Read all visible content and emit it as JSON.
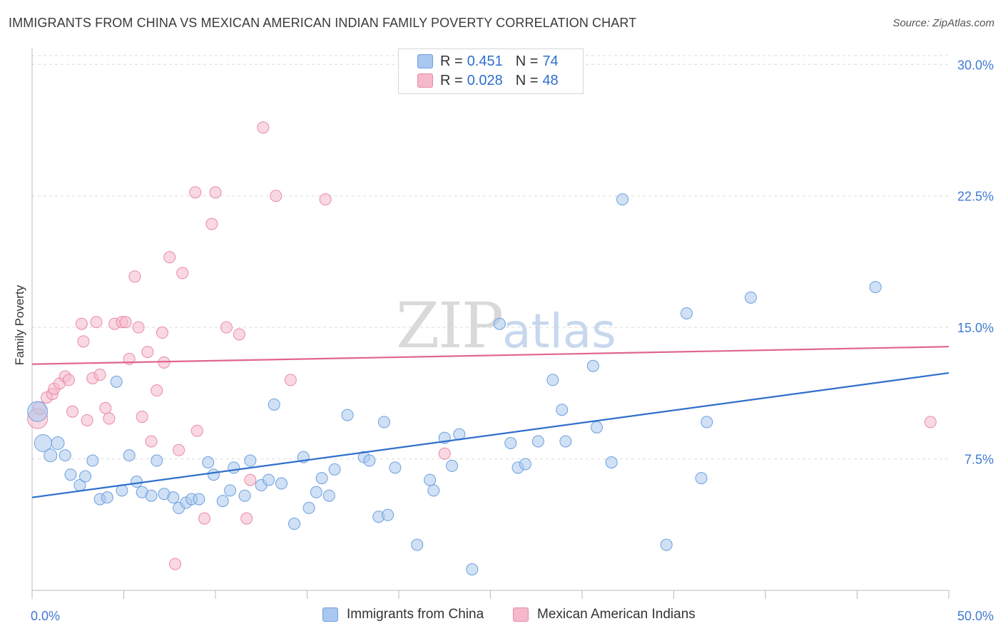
{
  "header": {
    "title": "IMMIGRANTS FROM CHINA VS MEXICAN AMERICAN INDIAN FAMILY POVERTY CORRELATION CHART",
    "source": "Source: ZipAtlas.com"
  },
  "watermark": {
    "zip": "ZIP",
    "atlas": "atlas"
  },
  "legend_top": {
    "rows": [
      {
        "r_label": "R =",
        "r_value": "0.451",
        "n_label": "N =",
        "n_value": "74",
        "color": "#a9c8ef"
      },
      {
        "r_label": "R =",
        "r_value": "0.028",
        "n_label": "N =",
        "n_value": "48",
        "color": "#f6b8cb"
      }
    ]
  },
  "colors": {
    "blue_fill": "#a9c8ef",
    "blue_stroke": "#6d9fde",
    "blue_line": "#2f6fcc",
    "pink_fill": "#f6b8cb",
    "pink_stroke": "#e88aa8",
    "pink_line": "#e0668c",
    "tick_label": "#3f7ad0",
    "grid": "#dcdcdc"
  },
  "chart_data": {
    "type": "scatter",
    "title": "IMMIGRANTS FROM CHINA VS MEXICAN AMERICAN INDIAN FAMILY POVERTY CORRELATION CHART",
    "xlabel": "",
    "ylabel": "Family Poverty",
    "xlim": [
      0,
      50
    ],
    "ylim": [
      0,
      30.5
    ],
    "x_tick_labels": [
      "0.0%",
      "50.0%"
    ],
    "y_ticks": [
      7.5,
      15,
      22.5,
      30
    ],
    "y_tick_labels": [
      "7.5%",
      "15.0%",
      "22.5%",
      "30.0%"
    ],
    "grid": true,
    "legend": "bottom",
    "series": [
      {
        "name": "Immigrants from China",
        "trend": [
          [
            0,
            5.3
          ],
          [
            50,
            12.4
          ]
        ],
        "points": [
          [
            0.3,
            10.2,
            14
          ],
          [
            0.6,
            8.4,
            12
          ],
          [
            1.0,
            7.7,
            9
          ],
          [
            1.4,
            8.4,
            9
          ],
          [
            1.8,
            7.7,
            8
          ],
          [
            2.1,
            6.6,
            8
          ],
          [
            2.6,
            6.0,
            8
          ],
          [
            2.9,
            6.5,
            8
          ],
          [
            3.3,
            7.4,
            8
          ],
          [
            3.7,
            5.2,
            8
          ],
          [
            4.1,
            5.3,
            8
          ],
          [
            4.6,
            11.9,
            8
          ],
          [
            4.9,
            5.7,
            8
          ],
          [
            5.3,
            7.7,
            8
          ],
          [
            5.7,
            6.2,
            8
          ],
          [
            6.0,
            5.6,
            8
          ],
          [
            6.5,
            5.4,
            8
          ],
          [
            6.8,
            7.4,
            8
          ],
          [
            7.2,
            5.5,
            8
          ],
          [
            7.7,
            5.3,
            8
          ],
          [
            8.0,
            4.7,
            8
          ],
          [
            8.4,
            5.0,
            8
          ],
          [
            8.7,
            5.2,
            8
          ],
          [
            9.1,
            5.2,
            8
          ],
          [
            9.6,
            7.3,
            8
          ],
          [
            9.9,
            6.6,
            8
          ],
          [
            10.4,
            5.1,
            8
          ],
          [
            10.8,
            5.7,
            8
          ],
          [
            11.0,
            7.0,
            8
          ],
          [
            11.6,
            5.4,
            8
          ],
          [
            11.9,
            7.4,
            8
          ],
          [
            12.5,
            6.0,
            8
          ],
          [
            12.9,
            6.3,
            8
          ],
          [
            13.2,
            10.6,
            8
          ],
          [
            13.6,
            6.1,
            8
          ],
          [
            14.3,
            3.8,
            8
          ],
          [
            14.8,
            7.6,
            8
          ],
          [
            15.1,
            4.7,
            8
          ],
          [
            15.5,
            5.6,
            8
          ],
          [
            15.8,
            6.4,
            8
          ],
          [
            16.2,
            5.4,
            8
          ],
          [
            16.5,
            6.9,
            8
          ],
          [
            17.2,
            10.0,
            8
          ],
          [
            18.1,
            7.6,
            8
          ],
          [
            18.4,
            7.4,
            8
          ],
          [
            18.9,
            4.2,
            8
          ],
          [
            19.2,
            9.6,
            8
          ],
          [
            19.4,
            4.3,
            8
          ],
          [
            19.8,
            7.0,
            8
          ],
          [
            21.0,
            2.6,
            8
          ],
          [
            21.7,
            6.3,
            8
          ],
          [
            21.9,
            5.7,
            8
          ],
          [
            22.5,
            8.7,
            8
          ],
          [
            22.9,
            7.1,
            8
          ],
          [
            23.3,
            8.9,
            8
          ],
          [
            24.0,
            1.2,
            8
          ],
          [
            25.5,
            15.2,
            8
          ],
          [
            26.1,
            8.4,
            8
          ],
          [
            26.5,
            7.0,
            8
          ],
          [
            26.9,
            7.2,
            8
          ],
          [
            27.6,
            8.5,
            8
          ],
          [
            28.4,
            12.0,
            8
          ],
          [
            28.9,
            10.3,
            8
          ],
          [
            29.1,
            8.5,
            8
          ],
          [
            30.6,
            12.8,
            8
          ],
          [
            30.8,
            9.3,
            8
          ],
          [
            31.6,
            7.3,
            8
          ],
          [
            32.2,
            22.3,
            8
          ],
          [
            34.6,
            2.6,
            8
          ],
          [
            35.7,
            15.8,
            8
          ],
          [
            36.5,
            6.4,
            8
          ],
          [
            36.8,
            9.6,
            8
          ],
          [
            39.2,
            16.7,
            8
          ],
          [
            46.0,
            17.3,
            8
          ]
        ]
      },
      {
        "name": "Mexican American Indians",
        "trend": [
          [
            0,
            12.9
          ],
          [
            50,
            13.9
          ]
        ],
        "points": [
          [
            0.3,
            9.8,
            14
          ],
          [
            0.4,
            10.4,
            9
          ],
          [
            0.8,
            11.0,
            8
          ],
          [
            1.1,
            11.2,
            8
          ],
          [
            1.2,
            11.5,
            8
          ],
          [
            1.5,
            11.8,
            8
          ],
          [
            1.8,
            12.2,
            8
          ],
          [
            2.0,
            12.0,
            8
          ],
          [
            2.2,
            10.2,
            8
          ],
          [
            2.7,
            15.2,
            8
          ],
          [
            2.8,
            14.2,
            8
          ],
          [
            3.0,
            9.7,
            8
          ],
          [
            3.3,
            12.1,
            8
          ],
          [
            3.5,
            15.3,
            8
          ],
          [
            3.7,
            12.3,
            8
          ],
          [
            4.0,
            10.4,
            8
          ],
          [
            4.2,
            9.8,
            8
          ],
          [
            4.5,
            15.2,
            8
          ],
          [
            4.9,
            15.3,
            8
          ],
          [
            5.1,
            15.3,
            8
          ],
          [
            5.3,
            13.2,
            8
          ],
          [
            5.6,
            17.9,
            8
          ],
          [
            5.8,
            15.0,
            8
          ],
          [
            6.0,
            9.9,
            8
          ],
          [
            6.3,
            13.6,
            8
          ],
          [
            6.5,
            8.5,
            8
          ],
          [
            6.8,
            11.4,
            8
          ],
          [
            7.1,
            14.7,
            8
          ],
          [
            7.2,
            13.0,
            8
          ],
          [
            7.5,
            19.0,
            8
          ],
          [
            7.8,
            1.5,
            8
          ],
          [
            8.0,
            8.0,
            8
          ],
          [
            8.2,
            18.1,
            8
          ],
          [
            8.9,
            22.7,
            8
          ],
          [
            9.0,
            9.1,
            8
          ],
          [
            9.4,
            4.1,
            8
          ],
          [
            9.8,
            20.9,
            8
          ],
          [
            10.0,
            22.7,
            8
          ],
          [
            10.6,
            15.0,
            8
          ],
          [
            11.3,
            14.6,
            8
          ],
          [
            11.7,
            4.1,
            8
          ],
          [
            11.9,
            6.3,
            8
          ],
          [
            12.6,
            26.4,
            8
          ],
          [
            13.3,
            22.5,
            8
          ],
          [
            14.1,
            12.0,
            8
          ],
          [
            16.0,
            22.3,
            8
          ],
          [
            22.5,
            7.8,
            8
          ],
          [
            49.0,
            9.6,
            8
          ]
        ]
      }
    ]
  }
}
